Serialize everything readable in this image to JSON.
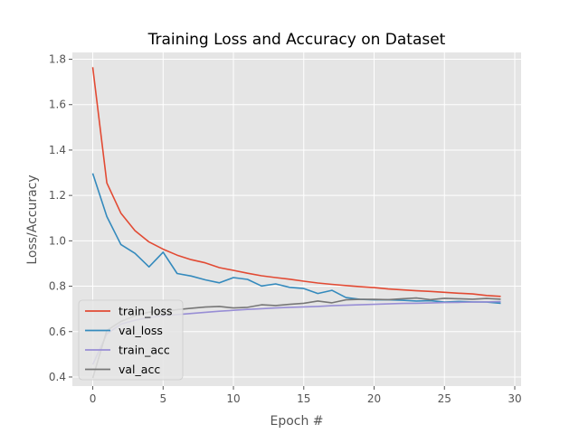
{
  "chart_data": {
    "type": "line",
    "title": "Training Loss and Accuracy on Dataset",
    "xlabel": "Epoch #",
    "ylabel": "Loss/Accuracy",
    "xlim": [
      -1.45,
      30.45
    ],
    "ylim": [
      0.36,
      1.83
    ],
    "xticks": [
      0,
      5,
      10,
      15,
      20,
      25,
      30
    ],
    "yticks": [
      0.4,
      0.6,
      0.8,
      1.0,
      1.2,
      1.4,
      1.6,
      1.8
    ],
    "xtick_labels": [
      "0",
      "5",
      "10",
      "15",
      "20",
      "25",
      "30"
    ],
    "ytick_labels": [
      "0.4",
      "0.6",
      "0.8",
      "1.0",
      "1.2",
      "1.4",
      "1.6",
      "1.8"
    ],
    "grid": true,
    "legend_position": "lower-left",
    "x": [
      0,
      1,
      2,
      3,
      4,
      5,
      6,
      7,
      8,
      9,
      10,
      11,
      12,
      13,
      14,
      15,
      16,
      17,
      18,
      19,
      20,
      21,
      22,
      23,
      24,
      25,
      26,
      27,
      28,
      29
    ],
    "series": [
      {
        "name": "train_loss",
        "color": "#E24A33",
        "values": [
          1.765,
          1.255,
          1.122,
          1.045,
          0.995,
          0.963,
          0.937,
          0.917,
          0.903,
          0.882,
          0.87,
          0.857,
          0.846,
          0.838,
          0.831,
          0.822,
          0.814,
          0.808,
          0.803,
          0.798,
          0.794,
          0.788,
          0.784,
          0.78,
          0.777,
          0.773,
          0.769,
          0.766,
          0.759,
          0.755
        ]
      },
      {
        "name": "val_loss",
        "color": "#348ABD",
        "values": [
          1.297,
          1.107,
          0.984,
          0.945,
          0.885,
          0.95,
          0.856,
          0.845,
          0.828,
          0.815,
          0.838,
          0.83,
          0.801,
          0.81,
          0.795,
          0.79,
          0.768,
          0.782,
          0.75,
          0.742,
          0.74,
          0.74,
          0.738,
          0.735,
          0.736,
          0.73,
          0.733,
          0.731,
          0.73,
          0.725
        ]
      },
      {
        "name": "train_acc",
        "color": "#988ED5",
        "values": [
          0.455,
          0.59,
          0.633,
          0.65,
          0.662,
          0.67,
          0.675,
          0.68,
          0.685,
          0.69,
          0.694,
          0.698,
          0.701,
          0.704,
          0.707,
          0.709,
          0.711,
          0.714,
          0.716,
          0.718,
          0.72,
          0.722,
          0.724,
          0.725,
          0.726,
          0.728,
          0.729,
          0.73,
          0.731,
          0.732
        ]
      },
      {
        "name": "val_acc",
        "color": "#777777",
        "values": [
          0.395,
          0.605,
          0.645,
          0.67,
          0.686,
          0.688,
          0.697,
          0.703,
          0.708,
          0.711,
          0.704,
          0.707,
          0.718,
          0.715,
          0.72,
          0.725,
          0.735,
          0.727,
          0.74,
          0.742,
          0.742,
          0.741,
          0.745,
          0.748,
          0.741,
          0.747,
          0.745,
          0.743,
          0.746,
          0.743
        ]
      }
    ],
    "colors": {
      "plot_background": "#E5E5E5",
      "grid": "#FFFFFF",
      "tick": "#555555",
      "legend_background": "#E5E5E5",
      "legend_border": "#CCCCCC"
    }
  }
}
